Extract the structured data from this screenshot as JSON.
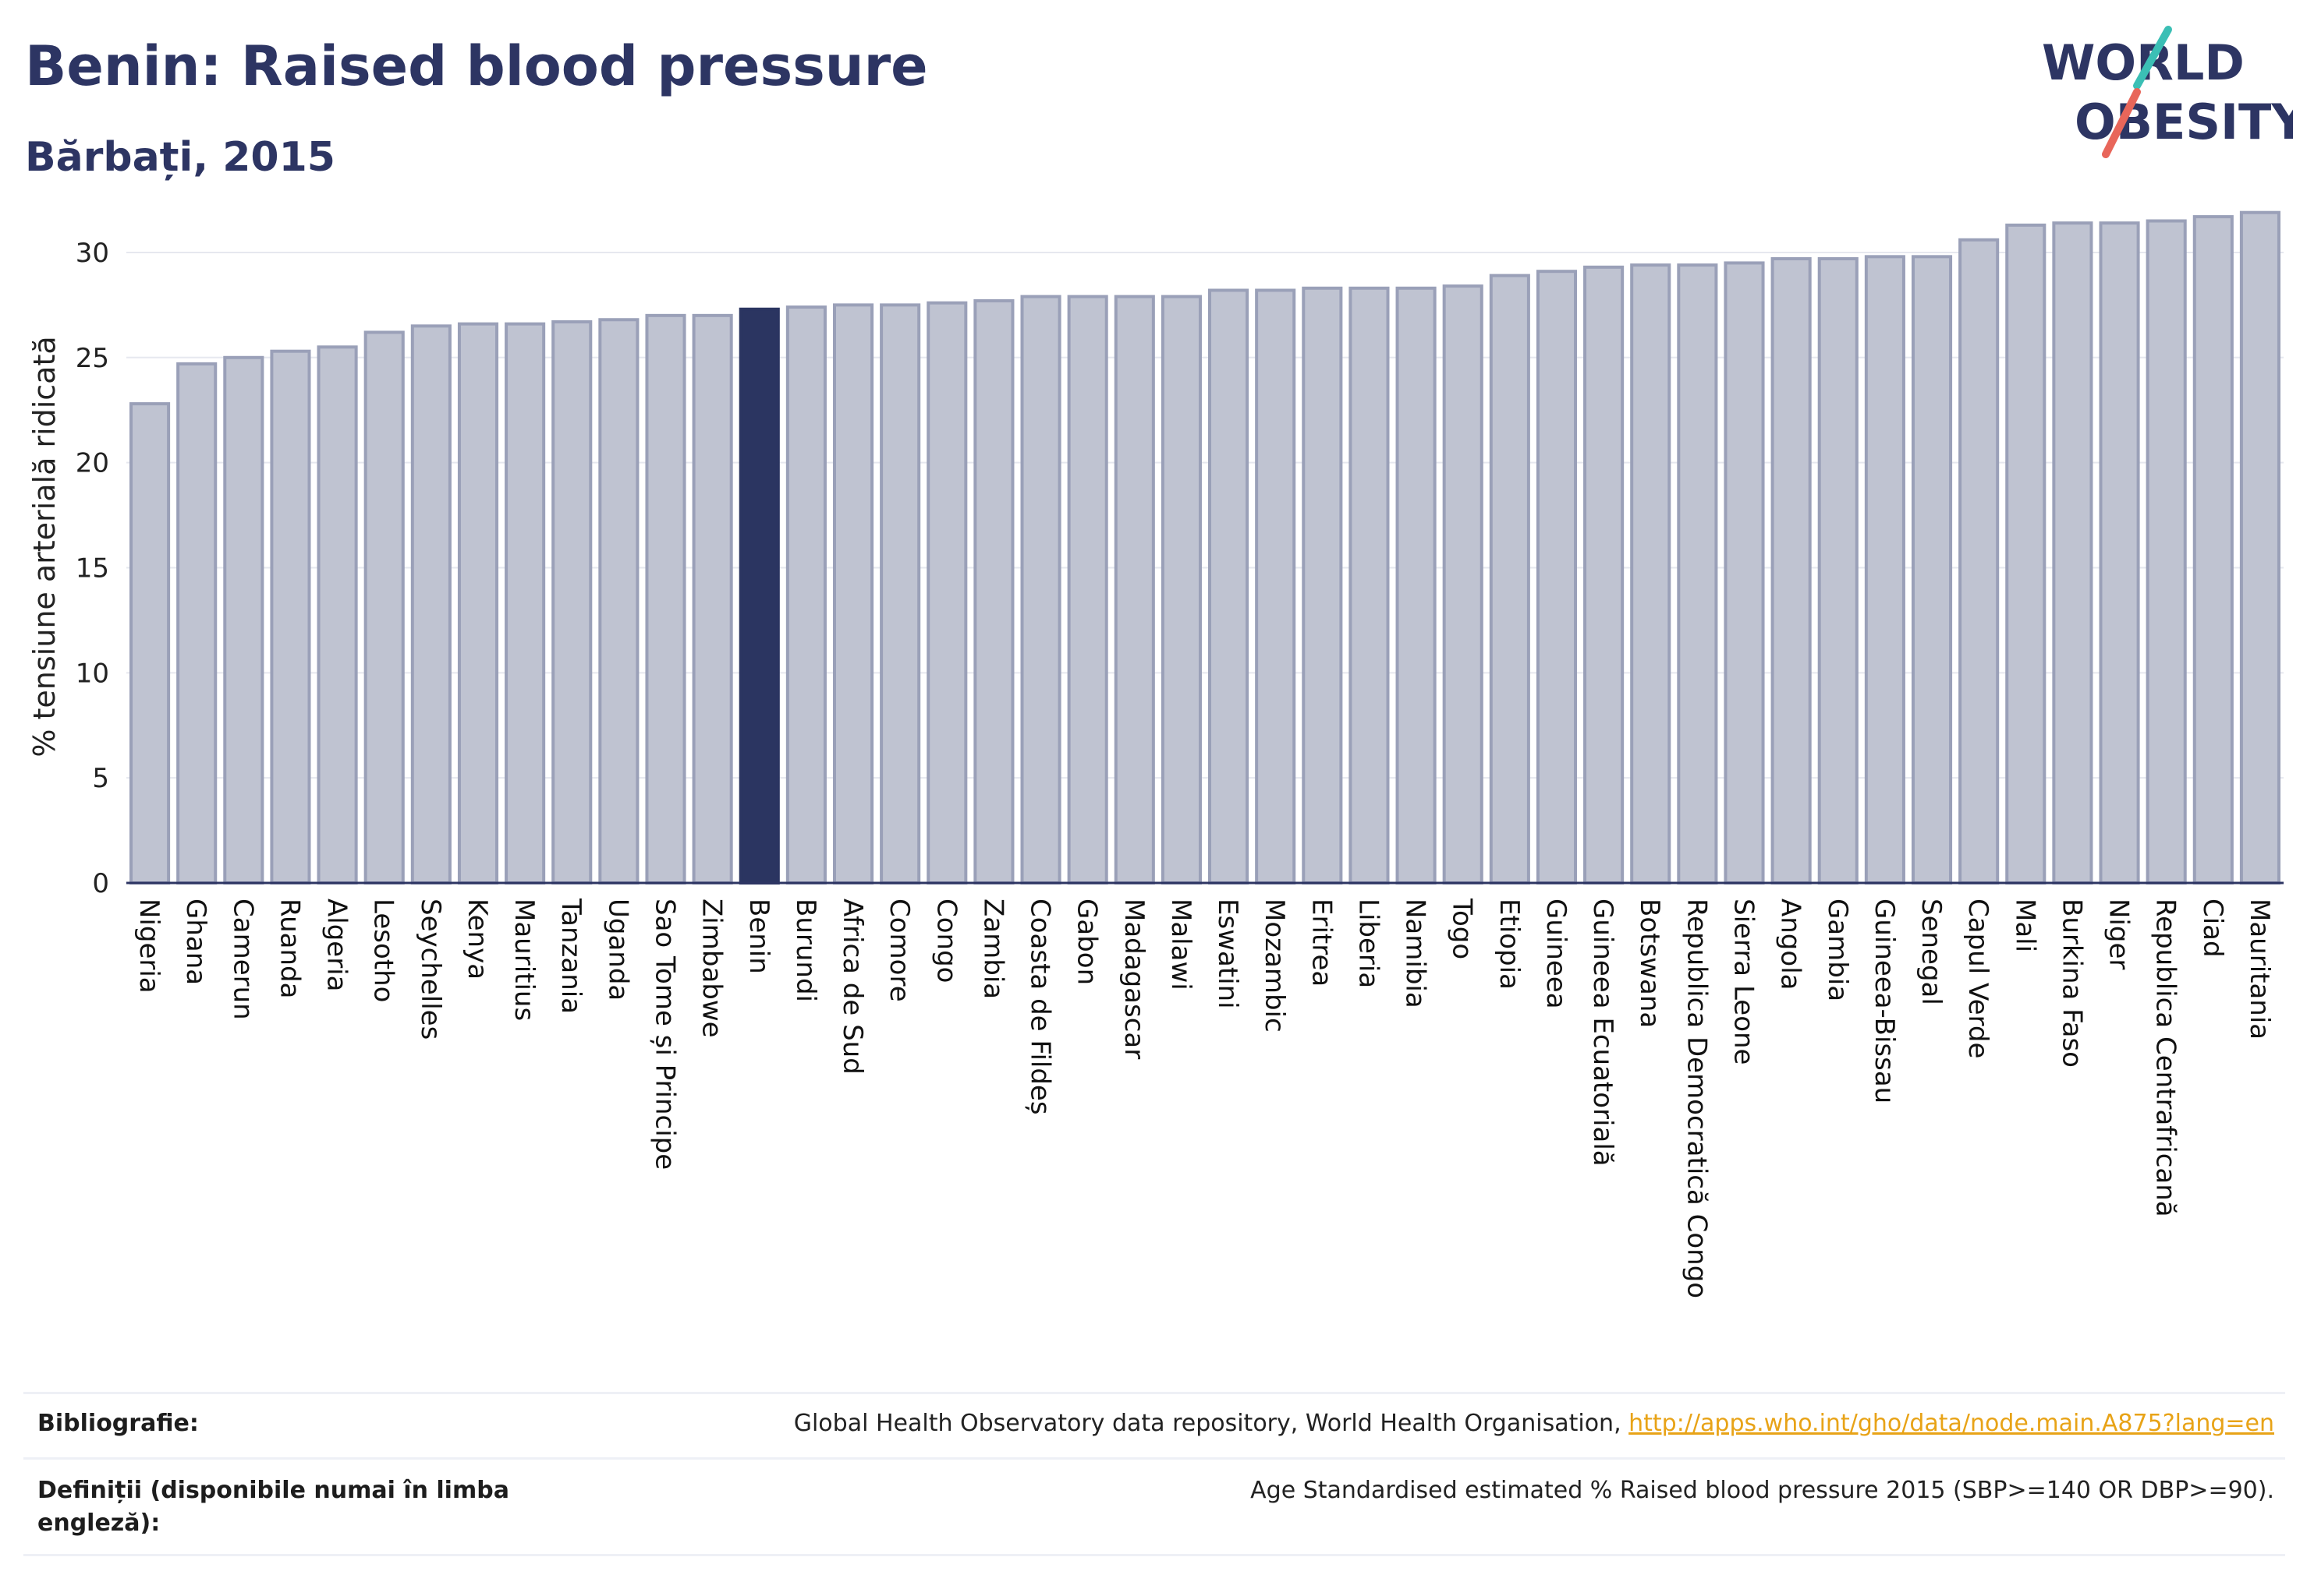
{
  "header": {
    "title": "Benin: Raised blood pressure",
    "subtitle": "Bărbați, 2015"
  },
  "logo": {
    "line1": "WORLD",
    "line2": "OBESITY",
    "accent_teal": "#3bbfb5",
    "accent_coral": "#e8665a"
  },
  "colors": {
    "bar": "#bfc3d1",
    "bar_stroke": "#9aa0b8",
    "highlight": "#2b3561",
    "text": "#2d3563",
    "grid": "#e6e8ef"
  },
  "chart_data": {
    "type": "bar",
    "ylabel": "% tensiune arterială ridicată",
    "ylim": [
      0,
      32
    ],
    "yticks": [
      0,
      5,
      10,
      15,
      20,
      25,
      30
    ],
    "grid": true,
    "highlight": "Benin",
    "categories": [
      "Nigeria",
      "Ghana",
      "Camerun",
      "Ruanda",
      "Algeria",
      "Lesotho",
      "Seychelles",
      "Kenya",
      "Mauritius",
      "Tanzania",
      "Uganda",
      "Sao Tome și Principe",
      "Zimbabwe",
      "Benin",
      "Burundi",
      "Africa de Sud",
      "Comore",
      "Congo",
      "Zambia",
      "Coasta de Fildeș",
      "Gabon",
      "Madagascar",
      "Malawi",
      "Eswatini",
      "Mozambic",
      "Eritrea",
      "Liberia",
      "Namibia",
      "Togo",
      "Etiopia",
      "Guineea",
      "Guineea Ecuatorială",
      "Botswana",
      "Republica Democratică Congo",
      "Sierra Leone",
      "Angola",
      "Gambia",
      "Guineea-Bissau",
      "Senegal",
      "Capul Verde",
      "Mali",
      "Burkina Faso",
      "Niger",
      "Republica Centrafricană",
      "Ciad",
      "Mauritania"
    ],
    "values": [
      22.8,
      24.7,
      25.0,
      25.3,
      25.5,
      26.2,
      26.5,
      26.6,
      26.6,
      26.7,
      26.8,
      27.0,
      27.0,
      27.3,
      27.4,
      27.5,
      27.5,
      27.6,
      27.7,
      27.9,
      27.9,
      27.9,
      27.9,
      28.2,
      28.2,
      28.3,
      28.3,
      28.3,
      28.4,
      28.9,
      29.1,
      29.3,
      29.4,
      29.4,
      29.5,
      29.7,
      29.7,
      29.8,
      29.8,
      30.6,
      31.3,
      31.4,
      31.4,
      31.5,
      31.7,
      31.9
    ]
  },
  "footer": {
    "bibliography_label": "Bibliografie:",
    "bibliography_text": "Global Health Observatory data repository, World Health Organisation, ",
    "bibliography_link": "http://apps.who.int/gho/data/node.main.A875?lang=en",
    "definitions_label": "Definiții (disponibile numai în limba engleză):",
    "definitions_text": "Age Standardised estimated % Raised blood pressure 2015 (SBP>=140 OR DBP>=90)."
  }
}
